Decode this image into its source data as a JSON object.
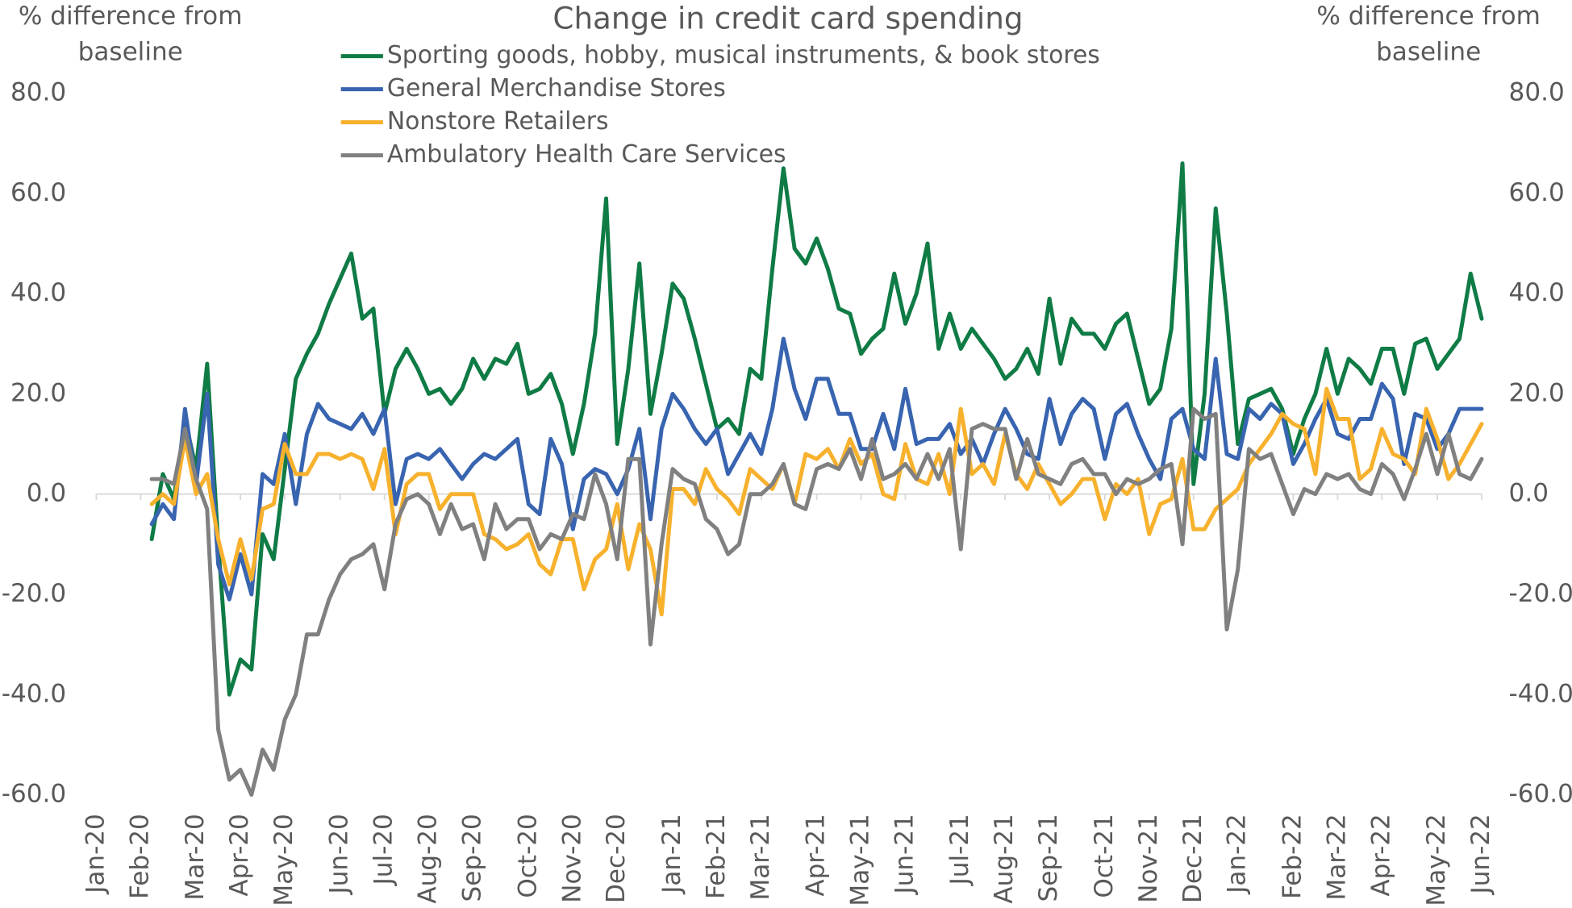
{
  "chart_data": {
    "type": "line",
    "title": "Change in credit card spending",
    "y_label": "% difference from baseline",
    "y2_label": "% difference from baseline",
    "categories": [
      "Jan-20",
      null,
      null,
      null,
      "Feb-20",
      null,
      null,
      null,
      null,
      "Mar-20",
      null,
      null,
      null,
      "Apr-20",
      null,
      null,
      null,
      "May-20",
      null,
      null,
      null,
      null,
      "Jun-20",
      null,
      null,
      null,
      "Jul-20",
      null,
      null,
      null,
      "Aug-20",
      null,
      null,
      null,
      "Sep-20",
      null,
      null,
      null,
      null,
      "Oct-20",
      null,
      null,
      null,
      "Nov-20",
      null,
      null,
      null,
      "Dec-20",
      null,
      null,
      null,
      null,
      "Jan-21",
      null,
      null,
      null,
      "Feb-21",
      null,
      null,
      null,
      "Mar-21",
      null,
      null,
      null,
      null,
      "Apr-21",
      null,
      null,
      null,
      "May-21",
      null,
      null,
      null,
      "Jun-21",
      null,
      null,
      null,
      null,
      "Jul-21",
      null,
      null,
      null,
      "Aug-21",
      null,
      null,
      null,
      "Sep-21",
      null,
      null,
      null,
      null,
      "Oct-21",
      null,
      null,
      null,
      "Nov-21",
      null,
      null,
      null,
      "Dec-21",
      null,
      null,
      null,
      "Jan-22",
      null,
      null,
      null,
      null,
      "Feb-22",
      null,
      null,
      null,
      "Mar-22",
      null,
      null,
      null,
      "Apr-22",
      null,
      null,
      null,
      null,
      "May-22",
      null,
      null,
      null,
      "Jun-22"
    ],
    "series": [
      {
        "name": "Sporting goods, hobby, musical instruments, & book stores",
        "color": "#0f7b45",
        "values": [
          null,
          null,
          null,
          null,
          null,
          -9,
          4,
          -1,
          15,
          5,
          26,
          -10,
          -40,
          -33,
          -35,
          -8,
          -13,
          5,
          23,
          28,
          32,
          38,
          43,
          48,
          35,
          37,
          16,
          25,
          29,
          25,
          20,
          21,
          18,
          21,
          27,
          23,
          27,
          26,
          30,
          20,
          21,
          24,
          18,
          8,
          18,
          32,
          59,
          10,
          25,
          46,
          16,
          28,
          42,
          39,
          31,
          22,
          13,
          15,
          12,
          25,
          23,
          45,
          65,
          49,
          46,
          51,
          45,
          37,
          36,
          28,
          31,
          33,
          44,
          34,
          40,
          50,
          29,
          36,
          29,
          33,
          30,
          27,
          23,
          25,
          29,
          24,
          39,
          26,
          35,
          32,
          32,
          29,
          34,
          36,
          27,
          18,
          21,
          33,
          66,
          2,
          20,
          57,
          36,
          10,
          19,
          20,
          21,
          17,
          8,
          15,
          20,
          29,
          20,
          27,
          25,
          22,
          29,
          29,
          20,
          30,
          31,
          25,
          28,
          31,
          44,
          35
        ]
      },
      {
        "name": "General Merchandise Stores",
        "color": "#3864b0",
        "values": [
          null,
          null,
          null,
          null,
          null,
          -6,
          -2,
          -5,
          17,
          2,
          20,
          -14,
          -21,
          -12,
          -20,
          4,
          2,
          12,
          -2,
          12,
          18,
          15,
          14,
          13,
          16,
          12,
          17,
          -2,
          7,
          8,
          7,
          9,
          6,
          3,
          6,
          8,
          7,
          9,
          11,
          -2,
          -4,
          11,
          6,
          -7,
          3,
          5,
          4,
          0,
          5,
          13,
          -5,
          13,
          20,
          17,
          13,
          10,
          13,
          4,
          8,
          12,
          8,
          17,
          31,
          21,
          15,
          23,
          23,
          16,
          16,
          9,
          9,
          16,
          9,
          21,
          10,
          11,
          11,
          14,
          8,
          11,
          6,
          12,
          17,
          13,
          8,
          7,
          19,
          10,
          16,
          19,
          17,
          7,
          16,
          18,
          12,
          7,
          3,
          15,
          17,
          9,
          7,
          27,
          8,
          7,
          17,
          15,
          18,
          16,
          6,
          10,
          15,
          19,
          12,
          11,
          15,
          15,
          22,
          19,
          6,
          16,
          15,
          9,
          12,
          17,
          17,
          17
        ]
      },
      {
        "name": "Nonstore Retailers",
        "color": "#f7b12d",
        "values": [
          null,
          null,
          null,
          null,
          null,
          -2,
          0,
          -2,
          11,
          0,
          4,
          -9,
          -18,
          -9,
          -17,
          -3,
          -2,
          10,
          4,
          4,
          8,
          8,
          7,
          8,
          7,
          1,
          9,
          -8,
          2,
          4,
          4,
          -3,
          0,
          0,
          0,
          -8,
          -9,
          -11,
          -10,
          -8,
          -14,
          -16,
          -9,
          -9,
          -19,
          -13,
          -11,
          -2,
          -15,
          -6,
          -11,
          -24,
          1,
          1,
          -2,
          5,
          1,
          -1,
          -4,
          5,
          3,
          1,
          6,
          -2,
          8,
          7,
          9,
          5,
          11,
          6,
          8,
          0,
          -1,
          10,
          3,
          2,
          8,
          0,
          17,
          4,
          6,
          2,
          12,
          4,
          1,
          6,
          2,
          -2,
          0,
          3,
          3,
          -5,
          2,
          0,
          3,
          -8,
          -2,
          -1,
          7,
          -7,
          -7,
          -3,
          -1,
          1,
          6,
          9,
          12,
          16,
          14,
          13,
          4,
          21,
          15,
          15,
          3,
          5,
          13,
          8,
          7,
          4,
          17,
          11,
          3,
          6,
          10,
          14
        ]
      },
      {
        "name": "Ambulatory Health Care Services",
        "color": "#808080",
        "values": [
          null,
          null,
          null,
          null,
          null,
          3,
          3,
          2,
          13,
          3,
          -3,
          -47,
          -57,
          -55,
          -60,
          -51,
          -55,
          -45,
          -40,
          -28,
          -28,
          -21,
          -16,
          -13,
          -12,
          -10,
          -19,
          -6,
          -1,
          0,
          -2,
          -8,
          -2,
          -7,
          -6,
          -13,
          -2,
          -7,
          -5,
          -5,
          -11,
          -8,
          -9,
          -4,
          -5,
          4,
          -2,
          -13,
          7,
          7,
          -30,
          -10,
          5,
          3,
          2,
          -5,
          -7,
          -12,
          -10,
          0,
          0,
          2,
          6,
          -2,
          -3,
          5,
          6,
          5,
          9,
          3,
          11,
          3,
          4,
          6,
          3,
          8,
          3,
          9,
          -11,
          13,
          14,
          13,
          13,
          3,
          11,
          4,
          3,
          2,
          6,
          7,
          4,
          4,
          0,
          3,
          2,
          3,
          5,
          6,
          -10,
          17,
          15,
          16,
          -27,
          -15,
          9,
          7,
          8,
          2,
          -4,
          1,
          0,
          4,
          3,
          4,
          1,
          0,
          6,
          4,
          -1,
          5,
          12,
          4,
          12,
          4,
          3,
          7
        ]
      }
    ],
    "ylim": [
      -60,
      80
    ],
    "yticks": [
      {
        "value": -60,
        "label": "-60.0"
      },
      {
        "value": -40,
        "label": "-40.0"
      },
      {
        "value": -20,
        "label": "-20.0"
      },
      {
        "value": 0,
        "label": "0.0"
      },
      {
        "value": 20,
        "label": "20.0"
      },
      {
        "value": 40,
        "label": "40.0"
      },
      {
        "value": 60,
        "label": "60.0"
      },
      {
        "value": 80,
        "label": "80.0"
      }
    ],
    "y2lim": [
      -60,
      80
    ],
    "y2ticks": [
      {
        "value": -60,
        "label": "-60.0"
      },
      {
        "value": -40,
        "label": "-40.0"
      },
      {
        "value": -20,
        "label": "-20.0"
      },
      {
        "value": 0,
        "label": "0.0"
      },
      {
        "value": 20,
        "label": "20.0"
      },
      {
        "value": 40,
        "label": "40.0"
      },
      {
        "value": 60,
        "label": "60.0"
      },
      {
        "value": 80,
        "label": "80.0"
      }
    ],
    "grid": false,
    "legend": "top"
  }
}
